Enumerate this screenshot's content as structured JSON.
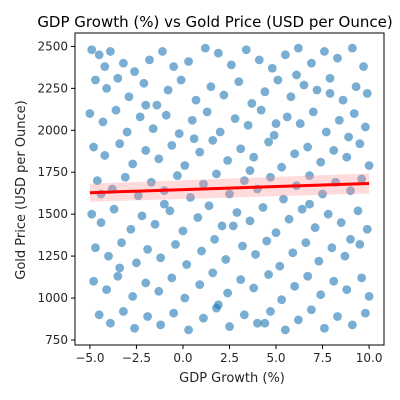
{
  "chart_data": {
    "type": "scatter",
    "title": "GDP Growth (%) vs Gold Price (USD per Ounce)",
    "xlabel": "GDP Growth (%)",
    "ylabel": "Gold Price (USD per Ounce)",
    "xlim": [
      -5.8,
      10.8
    ],
    "ylim": [
      720,
      2580
    ],
    "x_ticks": [
      -5.0,
      -2.5,
      0.0,
      2.5,
      5.0,
      7.5,
      10.0
    ],
    "x_tick_labels": [
      "−5.0",
      "−2.5",
      "0.0",
      "2.5",
      "5.0",
      "7.5",
      "10.0"
    ],
    "y_ticks": [
      750,
      1000,
      1250,
      1500,
      1750,
      2000,
      2250,
      2500
    ],
    "y_tick_labels": [
      "750",
      "1000",
      "1250",
      "1500",
      "1750",
      "2000",
      "2250",
      "2500"
    ],
    "grid": false,
    "point_color": "#1f77b4",
    "point_alpha": 0.6,
    "regression": {
      "x": [
        -5.0,
        10.0
      ],
      "y": [
        1628,
        1683
      ],
      "color": "#ff0000",
      "ci_color": "#ff9999"
    },
    "points": [
      [
        -4.9,
        2480
      ],
      [
        -4.5,
        2450
      ],
      [
        -3.9,
        2470
      ],
      [
        -3.2,
        2400
      ],
      [
        -2.6,
        2350
      ],
      [
        -1.8,
        2420
      ],
      [
        -1.1,
        2470
      ],
      [
        -0.5,
        2380
      ],
      [
        0.3,
        2410
      ],
      [
        1.2,
        2490
      ],
      [
        1.9,
        2460
      ],
      [
        2.6,
        2390
      ],
      [
        3.4,
        2480
      ],
      [
        4.1,
        2420
      ],
      [
        4.8,
        2370
      ],
      [
        5.5,
        2450
      ],
      [
        6.2,
        2490
      ],
      [
        6.9,
        2400
      ],
      [
        7.6,
        2470
      ],
      [
        8.3,
        2430
      ],
      [
        9.1,
        2490
      ],
      [
        9.7,
        2380
      ],
      [
        -4.7,
        2300
      ],
      [
        -4.1,
        2250
      ],
      [
        -3.5,
        2310
      ],
      [
        -2.9,
        2200
      ],
      [
        -2.1,
        2280
      ],
      [
        -1.4,
        2150
      ],
      [
        -0.8,
        2240
      ],
      [
        -0.1,
        2300
      ],
      [
        0.7,
        2180
      ],
      [
        1.5,
        2260
      ],
      [
        2.2,
        2210
      ],
      [
        3.0,
        2290
      ],
      [
        3.7,
        2160
      ],
      [
        4.4,
        2230
      ],
      [
        5.1,
        2300
      ],
      [
        5.8,
        2200
      ],
      [
        6.5,
        2270
      ],
      [
        7.2,
        2240
      ],
      [
        7.9,
        2310
      ],
      [
        8.6,
        2180
      ],
      [
        9.3,
        2260
      ],
      [
        9.9,
        2220
      ],
      [
        -5.0,
        2100
      ],
      [
        -4.3,
        2050
      ],
      [
        -3.6,
        2120
      ],
      [
        -3.0,
        1990
      ],
      [
        -2.3,
        2080
      ],
      [
        -1.6,
        2010
      ],
      [
        -0.9,
        2090
      ],
      [
        -0.2,
        1980
      ],
      [
        0.5,
        2060
      ],
      [
        1.3,
        2110
      ],
      [
        2.0,
        1990
      ],
      [
        2.8,
        2070
      ],
      [
        3.5,
        2030
      ],
      [
        4.2,
        2120
      ],
      [
        4.9,
        1970
      ],
      [
        5.6,
        2080
      ],
      [
        6.3,
        2040
      ],
      [
        7.0,
        2110
      ],
      [
        7.7,
        1990
      ],
      [
        8.4,
        2060
      ],
      [
        9.2,
        2100
      ],
      [
        9.8,
        2020
      ],
      [
        -4.8,
        1900
      ],
      [
        -4.2,
        1850
      ],
      [
        -3.4,
        1920
      ],
      [
        -2.7,
        1800
      ],
      [
        -2.0,
        1880
      ],
      [
        -1.3,
        1830
      ],
      [
        -0.6,
        1910
      ],
      [
        0.1,
        1790
      ],
      [
        0.9,
        1870
      ],
      [
        1.6,
        1940
      ],
      [
        2.4,
        1820
      ],
      [
        3.1,
        1890
      ],
      [
        3.8,
        1840
      ],
      [
        4.6,
        1930
      ],
      [
        5.3,
        1780
      ],
      [
        6.0,
        1860
      ],
      [
        6.7,
        1900
      ],
      [
        7.4,
        1810
      ],
      [
        8.1,
        1880
      ],
      [
        8.8,
        1840
      ],
      [
        9.5,
        1920
      ],
      [
        10.0,
        1790
      ],
      [
        -4.6,
        1700
      ],
      [
        -3.8,
        1650
      ],
      [
        -3.1,
        1720
      ],
      [
        -2.4,
        1610
      ],
      [
        -1.7,
        1690
      ],
      [
        -1.0,
        1640
      ],
      [
        -0.3,
        1730
      ],
      [
        0.4,
        1600
      ],
      [
        1.1,
        1680
      ],
      [
        1.8,
        1740
      ],
      [
        2.5,
        1620
      ],
      [
        3.3,
        1700
      ],
      [
        4.0,
        1650
      ],
      [
        4.7,
        1720
      ],
      [
        5.4,
        1590
      ],
      [
        6.1,
        1670
      ],
      [
        6.8,
        1730
      ],
      [
        7.5,
        1620
      ],
      [
        8.2,
        1690
      ],
      [
        9.0,
        1640
      ],
      [
        9.6,
        1710
      ],
      [
        -4.9,
        1500
      ],
      [
        -4.4,
        1450
      ],
      [
        -3.7,
        1530
      ],
      [
        -2.8,
        1410
      ],
      [
        -2.2,
        1490
      ],
      [
        -1.5,
        1440
      ],
      [
        -0.7,
        1520
      ],
      [
        0.0,
        1400
      ],
      [
        0.8,
        1480
      ],
      [
        1.4,
        1550
      ],
      [
        2.1,
        1430
      ],
      [
        2.9,
        1510
      ],
      [
        3.6,
        1460
      ],
      [
        4.3,
        1540
      ],
      [
        5.0,
        1390
      ],
      [
        5.7,
        1470
      ],
      [
        6.4,
        1530
      ],
      [
        7.1,
        1420
      ],
      [
        7.8,
        1500
      ],
      [
        8.5,
        1450
      ],
      [
        9.4,
        1520
      ],
      [
        9.9,
        1410
      ],
      [
        -4.7,
        1300
      ],
      [
        -4.0,
        1250
      ],
      [
        -3.3,
        1330
      ],
      [
        -2.5,
        1210
      ],
      [
        -1.9,
        1290
      ],
      [
        -1.2,
        1240
      ],
      [
        -0.4,
        1320
      ],
      [
        0.2,
        1200
      ],
      [
        1.0,
        1280
      ],
      [
        1.7,
        1350
      ],
      [
        2.3,
        1230
      ],
      [
        3.2,
        1310
      ],
      [
        3.9,
        1260
      ],
      [
        4.5,
        1340
      ],
      [
        5.2,
        1190
      ],
      [
        5.9,
        1270
      ],
      [
        6.6,
        1330
      ],
      [
        7.3,
        1220
      ],
      [
        8.0,
        1300
      ],
      [
        8.7,
        1250
      ],
      [
        9.5,
        1320
      ],
      [
        -4.8,
        1100
      ],
      [
        -4.1,
        1050
      ],
      [
        -3.5,
        1130
      ],
      [
        -2.7,
        1010
      ],
      [
        -2.0,
        1090
      ],
      [
        -1.3,
        1040
      ],
      [
        -0.6,
        1120
      ],
      [
        0.1,
        1000
      ],
      [
        0.9,
        1080
      ],
      [
        1.6,
        1150
      ],
      [
        2.4,
        1030
      ],
      [
        3.1,
        1110
      ],
      [
        3.8,
        1060
      ],
      [
        4.6,
        1140
      ],
      [
        5.3,
        990
      ],
      [
        6.0,
        1070
      ],
      [
        6.7,
        1130
      ],
      [
        7.4,
        1020
      ],
      [
        8.1,
        1100
      ],
      [
        8.8,
        1050
      ],
      [
        9.6,
        1120
      ],
      [
        10.0,
        1010
      ],
      [
        -4.5,
        900
      ],
      [
        -3.9,
        850
      ],
      [
        -3.2,
        920
      ],
      [
        -2.6,
        820
      ],
      [
        -1.9,
        890
      ],
      [
        -1.2,
        840
      ],
      [
        -0.5,
        910
      ],
      [
        0.3,
        810
      ],
      [
        1.1,
        880
      ],
      [
        1.8,
        940
      ],
      [
        2.5,
        830
      ],
      [
        3.3,
        900
      ],
      [
        4.0,
        850
      ],
      [
        4.7,
        920
      ],
      [
        5.5,
        810
      ],
      [
        6.2,
        870
      ],
      [
        6.9,
        930
      ],
      [
        7.6,
        820
      ],
      [
        8.3,
        890
      ],
      [
        9.1,
        840
      ],
      [
        9.8,
        910
      ],
      [
        -4.2,
        2380
      ],
      [
        -2.0,
        2150
      ],
      [
        0.6,
        1950
      ],
      [
        3.6,
        1760
      ],
      [
        6.8,
        1560
      ],
      [
        9.0,
        1350
      ],
      [
        -3.4,
        1180
      ],
      [
        1.9,
        960
      ],
      [
        5.0,
        2040
      ],
      [
        7.9,
        2220
      ],
      [
        -1.0,
        1560
      ],
      [
        2.7,
        1430
      ],
      [
        8.9,
        1960
      ],
      [
        -4.4,
        1620
      ],
      [
        4.4,
        850
      ],
      [
        6.1,
        2330
      ]
    ]
  }
}
